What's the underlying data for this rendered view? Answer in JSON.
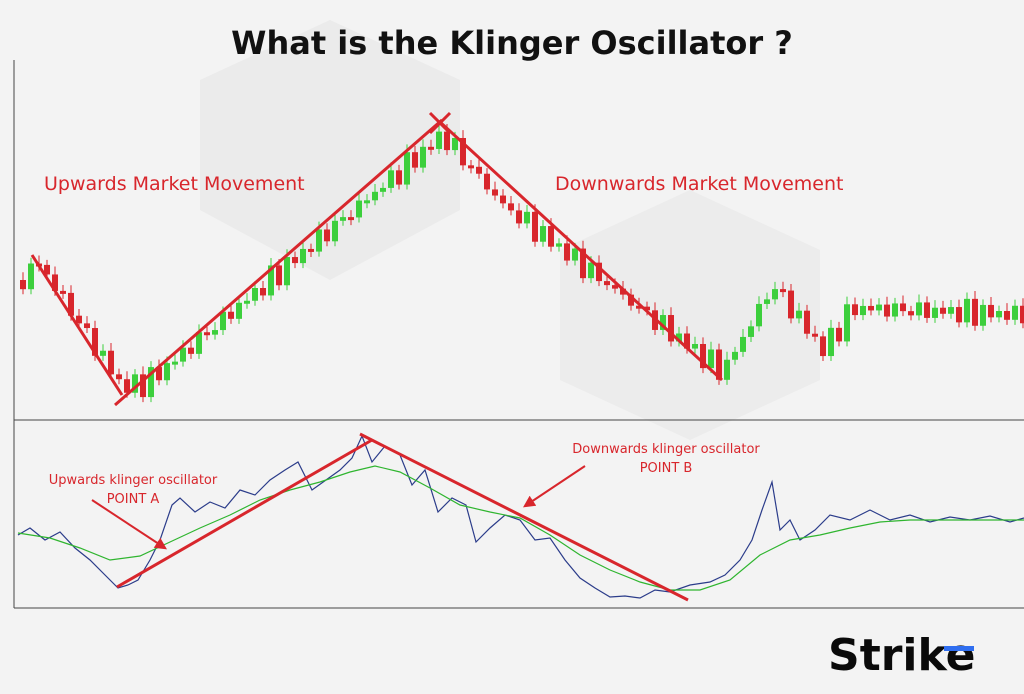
{
  "header": {
    "title": "What is the Klinger Oscillator ?"
  },
  "price_panel": {
    "left_label": "Upwards Market Movement",
    "right_label": "Downwards Market Movement"
  },
  "oscillator_panel": {
    "point_a": {
      "line1": "Upwards klinger oscillator",
      "line2": "POINT A"
    },
    "point_b": {
      "line1": "Downwards klinger oscillator",
      "line2": "POINT B"
    }
  },
  "logo": {
    "text": "Strike"
  }
}
